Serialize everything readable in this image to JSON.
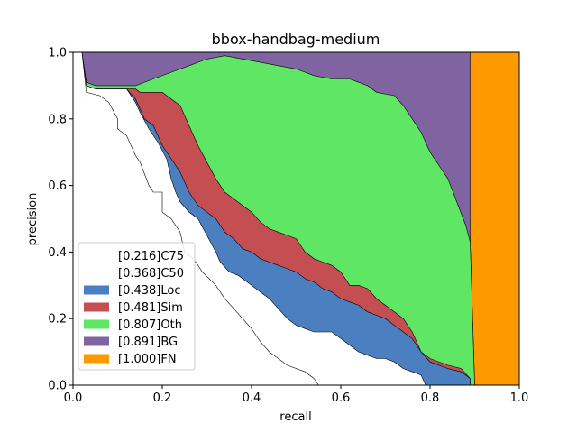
{
  "chart_data": {
    "type": "area",
    "title": "bbox-handbag-medium",
    "xlabel": "recall",
    "ylabel": "precision",
    "xlim": [
      0,
      1
    ],
    "ylim": [
      0,
      1
    ],
    "xticks": [
      "0.0",
      "0.2",
      "0.4",
      "0.6",
      "0.8",
      "1.0"
    ],
    "yticks": [
      "0.0",
      "0.2",
      "0.4",
      "0.6",
      "0.8",
      "1.0"
    ],
    "legend_position": "lower-left",
    "series": [
      {
        "name": "[0.216]C75",
        "color": "#ffffff",
        "points": [
          [
            0.0,
            1.0
          ],
          [
            0.02,
            1.0
          ],
          [
            0.03,
            0.88
          ],
          [
            0.06,
            0.87
          ],
          [
            0.08,
            0.85
          ],
          [
            0.1,
            0.8
          ],
          [
            0.1,
            0.77
          ],
          [
            0.12,
            0.75
          ],
          [
            0.14,
            0.69
          ],
          [
            0.15,
            0.67
          ],
          [
            0.17,
            0.6
          ],
          [
            0.18,
            0.58
          ],
          [
            0.2,
            0.58
          ],
          [
            0.2,
            0.52
          ],
          [
            0.22,
            0.5
          ],
          [
            0.24,
            0.46
          ],
          [
            0.25,
            0.4
          ],
          [
            0.27,
            0.38
          ],
          [
            0.29,
            0.34
          ],
          [
            0.32,
            0.3
          ],
          [
            0.34,
            0.26
          ],
          [
            0.36,
            0.23
          ],
          [
            0.38,
            0.2
          ],
          [
            0.4,
            0.17
          ],
          [
            0.42,
            0.13
          ],
          [
            0.44,
            0.1
          ],
          [
            0.48,
            0.06
          ],
          [
            0.52,
            0.04
          ],
          [
            0.54,
            0.02
          ],
          [
            0.55,
            0.0
          ]
        ]
      },
      {
        "name": "[0.368]C50",
        "color": "#ffffff",
        "points": [
          [
            0.0,
            1.0
          ],
          [
            0.02,
            1.0
          ],
          [
            0.03,
            0.9
          ],
          [
            0.05,
            0.89
          ],
          [
            0.12,
            0.89
          ],
          [
            0.14,
            0.85
          ],
          [
            0.15,
            0.82
          ],
          [
            0.17,
            0.77
          ],
          [
            0.19,
            0.73
          ],
          [
            0.21,
            0.68
          ],
          [
            0.22,
            0.62
          ],
          [
            0.23,
            0.58
          ],
          [
            0.24,
            0.55
          ],
          [
            0.26,
            0.52
          ],
          [
            0.28,
            0.5
          ],
          [
            0.3,
            0.45
          ],
          [
            0.32,
            0.4
          ],
          [
            0.33,
            0.37
          ],
          [
            0.35,
            0.34
          ],
          [
            0.37,
            0.33
          ],
          [
            0.39,
            0.31
          ],
          [
            0.4,
            0.3
          ],
          [
            0.42,
            0.28
          ],
          [
            0.44,
            0.26
          ],
          [
            0.46,
            0.23
          ],
          [
            0.48,
            0.2
          ],
          [
            0.5,
            0.18
          ],
          [
            0.52,
            0.17
          ],
          [
            0.54,
            0.16
          ],
          [
            0.58,
            0.16
          ],
          [
            0.6,
            0.14
          ],
          [
            0.62,
            0.12
          ],
          [
            0.64,
            0.1
          ],
          [
            0.66,
            0.09
          ],
          [
            0.68,
            0.08
          ],
          [
            0.7,
            0.08
          ],
          [
            0.72,
            0.07
          ],
          [
            0.74,
            0.05
          ],
          [
            0.76,
            0.04
          ],
          [
            0.78,
            0.03
          ],
          [
            0.79,
            0.0
          ]
        ]
      },
      {
        "name": "[0.438]Loc",
        "color": "#4c7fbf",
        "points": [
          [
            0.0,
            1.0
          ],
          [
            0.02,
            1.0
          ],
          [
            0.03,
            0.9
          ],
          [
            0.05,
            0.89
          ],
          [
            0.12,
            0.89
          ],
          [
            0.14,
            0.86
          ],
          [
            0.16,
            0.8
          ],
          [
            0.18,
            0.78
          ],
          [
            0.2,
            0.72
          ],
          [
            0.22,
            0.68
          ],
          [
            0.24,
            0.64
          ],
          [
            0.26,
            0.58
          ],
          [
            0.28,
            0.54
          ],
          [
            0.3,
            0.52
          ],
          [
            0.32,
            0.5
          ],
          [
            0.34,
            0.46
          ],
          [
            0.36,
            0.44
          ],
          [
            0.38,
            0.41
          ],
          [
            0.4,
            0.4
          ],
          [
            0.42,
            0.38
          ],
          [
            0.44,
            0.37
          ],
          [
            0.46,
            0.36
          ],
          [
            0.48,
            0.35
          ],
          [
            0.5,
            0.34
          ],
          [
            0.52,
            0.32
          ],
          [
            0.54,
            0.31
          ],
          [
            0.56,
            0.29
          ],
          [
            0.58,
            0.28
          ],
          [
            0.6,
            0.26
          ],
          [
            0.62,
            0.25
          ],
          [
            0.64,
            0.24
          ],
          [
            0.66,
            0.22
          ],
          [
            0.68,
            0.21
          ],
          [
            0.7,
            0.2
          ],
          [
            0.72,
            0.18
          ],
          [
            0.74,
            0.16
          ],
          [
            0.76,
            0.14
          ],
          [
            0.78,
            0.1
          ],
          [
            0.8,
            0.07
          ],
          [
            0.84,
            0.05
          ],
          [
            0.87,
            0.04
          ],
          [
            0.89,
            0.02
          ],
          [
            0.89,
            0.0
          ]
        ]
      },
      {
        "name": "[0.481]Sim",
        "color": "#c44e52",
        "points": [
          [
            0.0,
            1.0
          ],
          [
            0.02,
            1.0
          ],
          [
            0.03,
            0.9
          ],
          [
            0.05,
            0.89
          ],
          [
            0.14,
            0.89
          ],
          [
            0.15,
            0.88
          ],
          [
            0.2,
            0.88
          ],
          [
            0.22,
            0.86
          ],
          [
            0.24,
            0.84
          ],
          [
            0.26,
            0.78
          ],
          [
            0.28,
            0.72
          ],
          [
            0.3,
            0.67
          ],
          [
            0.32,
            0.62
          ],
          [
            0.34,
            0.58
          ],
          [
            0.36,
            0.56
          ],
          [
            0.38,
            0.54
          ],
          [
            0.4,
            0.52
          ],
          [
            0.42,
            0.49
          ],
          [
            0.44,
            0.47
          ],
          [
            0.46,
            0.46
          ],
          [
            0.48,
            0.45
          ],
          [
            0.5,
            0.44
          ],
          [
            0.52,
            0.4
          ],
          [
            0.54,
            0.38
          ],
          [
            0.56,
            0.37
          ],
          [
            0.58,
            0.36
          ],
          [
            0.6,
            0.34
          ],
          [
            0.62,
            0.3
          ],
          [
            0.64,
            0.3
          ],
          [
            0.66,
            0.29
          ],
          [
            0.68,
            0.26
          ],
          [
            0.7,
            0.24
          ],
          [
            0.72,
            0.22
          ],
          [
            0.74,
            0.2
          ],
          [
            0.76,
            0.16
          ],
          [
            0.78,
            0.1
          ],
          [
            0.8,
            0.08
          ],
          [
            0.84,
            0.06
          ],
          [
            0.87,
            0.05
          ],
          [
            0.89,
            0.02
          ],
          [
            0.89,
            0.0
          ]
        ]
      },
      {
        "name": "[0.807]Oth",
        "color": "#5ee664",
        "points": [
          [
            0.0,
            1.0
          ],
          [
            0.02,
            1.0
          ],
          [
            0.03,
            0.91
          ],
          [
            0.05,
            0.9
          ],
          [
            0.12,
            0.9
          ],
          [
            0.14,
            0.9
          ],
          [
            0.18,
            0.92
          ],
          [
            0.22,
            0.94
          ],
          [
            0.26,
            0.96
          ],
          [
            0.3,
            0.98
          ],
          [
            0.34,
            0.99
          ],
          [
            0.38,
            0.98
          ],
          [
            0.42,
            0.97
          ],
          [
            0.46,
            0.96
          ],
          [
            0.5,
            0.95
          ],
          [
            0.54,
            0.93
          ],
          [
            0.58,
            0.92
          ],
          [
            0.62,
            0.92
          ],
          [
            0.64,
            0.91
          ],
          [
            0.66,
            0.9
          ],
          [
            0.68,
            0.88
          ],
          [
            0.72,
            0.87
          ],
          [
            0.74,
            0.84
          ],
          [
            0.76,
            0.8
          ],
          [
            0.78,
            0.76
          ],
          [
            0.8,
            0.7
          ],
          [
            0.82,
            0.66
          ],
          [
            0.84,
            0.62
          ],
          [
            0.86,
            0.55
          ],
          [
            0.88,
            0.48
          ],
          [
            0.89,
            0.43
          ],
          [
            0.9,
            0.0
          ]
        ]
      },
      {
        "name": "[0.891]BG",
        "color": "#8064a2",
        "points": [
          [
            0.0,
            1.0
          ],
          [
            0.89,
            1.0
          ],
          [
            0.89,
            0.43
          ],
          [
            0.9,
            0.0
          ]
        ]
      },
      {
        "name": "[1.000]FN",
        "color": "#ff9900",
        "points": [
          [
            0.0,
            1.0
          ],
          [
            1.0,
            1.0
          ],
          [
            1.0,
            0.0
          ]
        ]
      }
    ]
  }
}
